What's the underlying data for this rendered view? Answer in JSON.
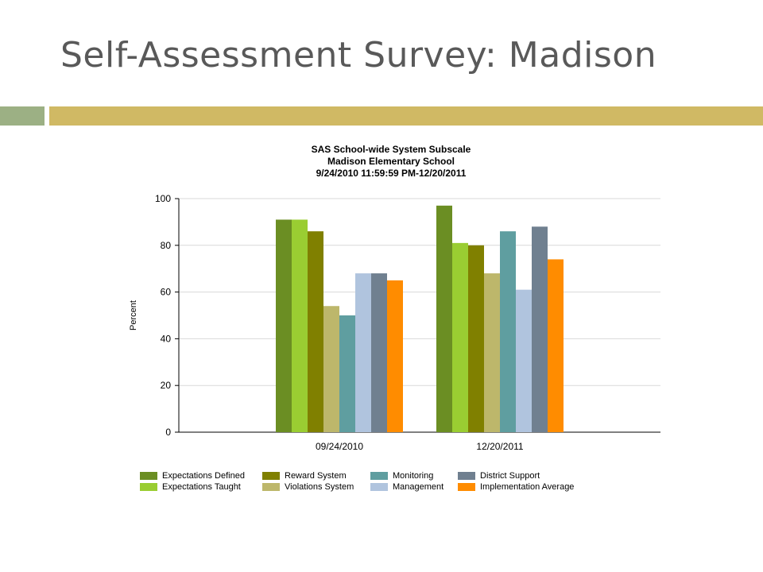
{
  "slide": {
    "title": "Self-Assessment Survey: Madison"
  },
  "colors": {
    "accent_left": "#9cb084",
    "accent_right": "#d0b964"
  },
  "chart_data": {
    "type": "bar",
    "title_lines": [
      "SAS School-wide System Subscale",
      "Madison Elementary School",
      "9/24/2010 11:59:59 PM-12/20/2011"
    ],
    "xlabel": "",
    "ylabel": "Percent",
    "ylim": [
      0,
      100
    ],
    "yticks": [
      0,
      20,
      40,
      60,
      80,
      100
    ],
    "grid": true,
    "legend_position": "bottom",
    "categories": [
      "09/24/2010",
      "12/20/2011"
    ],
    "series": [
      {
        "name": "Expectations Defined",
        "color": "#6b8e23",
        "values": [
          91,
          97
        ]
      },
      {
        "name": "Expectations Taught",
        "color": "#9acd32",
        "values": [
          91,
          81
        ]
      },
      {
        "name": "Reward System",
        "color": "#808000",
        "values": [
          86,
          80
        ]
      },
      {
        "name": "Violations System",
        "color": "#bdb76b",
        "values": [
          54,
          68
        ]
      },
      {
        "name": "Monitoring",
        "color": "#5f9ea0",
        "values": [
          50,
          86
        ]
      },
      {
        "name": "Management",
        "color": "#b0c4de",
        "values": [
          68,
          61
        ]
      },
      {
        "name": "District Support",
        "color": "#708090",
        "values": [
          68,
          88
        ]
      },
      {
        "name": "Implementation Average",
        "color": "#ff8c00",
        "values": [
          65,
          74
        ]
      }
    ]
  }
}
